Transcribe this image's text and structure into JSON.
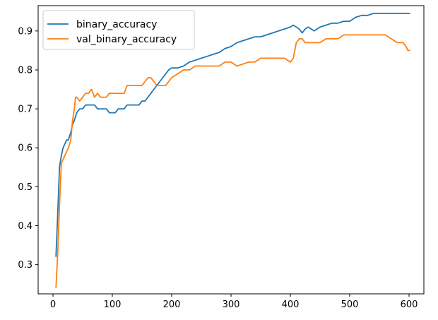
{
  "chart_data": {
    "type": "line",
    "title": "",
    "xlabel": "",
    "ylabel": "",
    "xlim": [
      -25,
      625
    ],
    "ylim": [
      0.225,
      0.965
    ],
    "xticks": [
      0,
      100,
      200,
      300,
      400,
      500,
      600
    ],
    "yticks": [
      0.3,
      0.4,
      0.5,
      0.6,
      0.7,
      0.8,
      0.9
    ],
    "xtick_labels": [
      "0",
      "100",
      "200",
      "300",
      "400",
      "500",
      "600"
    ],
    "ytick_labels": [
      "0.3",
      "0.4",
      "0.5",
      "0.6",
      "0.7",
      "0.8",
      "0.9"
    ],
    "grid": false,
    "legend_position": "top-left",
    "series": [
      {
        "name": "binary_accuracy",
        "color": "#1f77b4",
        "x": [
          5,
          8,
          11,
          14,
          17,
          20,
          23,
          26,
          30,
          33,
          36,
          40,
          45,
          50,
          55,
          60,
          65,
          70,
          75,
          80,
          85,
          90,
          95,
          100,
          105,
          110,
          115,
          120,
          125,
          130,
          135,
          140,
          145,
          150,
          155,
          160,
          165,
          170,
          175,
          180,
          185,
          190,
          195,
          200,
          210,
          220,
          230,
          240,
          250,
          260,
          270,
          280,
          290,
          300,
          310,
          320,
          330,
          340,
          350,
          360,
          370,
          380,
          390,
          400,
          405,
          410,
          415,
          420,
          425,
          430,
          440,
          450,
          460,
          470,
          480,
          490,
          500,
          510,
          520,
          530,
          540,
          550,
          560,
          570,
          580,
          590,
          602
        ],
        "y": [
          0.32,
          0.43,
          0.55,
          0.58,
          0.6,
          0.61,
          0.62,
          0.62,
          0.64,
          0.66,
          0.67,
          0.69,
          0.7,
          0.7,
          0.71,
          0.71,
          0.71,
          0.71,
          0.7,
          0.7,
          0.7,
          0.7,
          0.69,
          0.69,
          0.69,
          0.7,
          0.7,
          0.7,
          0.71,
          0.71,
          0.71,
          0.71,
          0.71,
          0.72,
          0.72,
          0.73,
          0.74,
          0.75,
          0.76,
          0.77,
          0.78,
          0.79,
          0.8,
          0.805,
          0.805,
          0.81,
          0.82,
          0.825,
          0.83,
          0.835,
          0.84,
          0.845,
          0.855,
          0.86,
          0.87,
          0.875,
          0.88,
          0.885,
          0.885,
          0.89,
          0.895,
          0.9,
          0.905,
          0.91,
          0.915,
          0.91,
          0.905,
          0.895,
          0.905,
          0.91,
          0.9,
          0.91,
          0.915,
          0.92,
          0.92,
          0.925,
          0.925,
          0.935,
          0.94,
          0.94,
          0.945,
          0.945,
          0.945,
          0.945,
          0.945,
          0.945,
          0.945
        ]
      },
      {
        "name": "val_binary_accuracy",
        "color": "#ff7f0e",
        "x": [
          5,
          8,
          11,
          14,
          17,
          20,
          23,
          26,
          30,
          33,
          36,
          38,
          40,
          45,
          50,
          55,
          60,
          65,
          70,
          75,
          80,
          90,
          95,
          100,
          110,
          120,
          125,
          130,
          140,
          150,
          155,
          160,
          165,
          170,
          175,
          180,
          190,
          195,
          200,
          210,
          220,
          230,
          240,
          250,
          260,
          270,
          280,
          290,
          300,
          310,
          320,
          330,
          340,
          350,
          360,
          370,
          380,
          390,
          400,
          405,
          410,
          415,
          420,
          425,
          430,
          440,
          450,
          460,
          470,
          480,
          490,
          500,
          510,
          520,
          530,
          540,
          550,
          560,
          570,
          580,
          590,
          595,
          598,
          602
        ],
        "y": [
          0.24,
          0.33,
          0.45,
          0.56,
          0.57,
          0.58,
          0.59,
          0.6,
          0.62,
          0.67,
          0.7,
          0.73,
          0.73,
          0.72,
          0.73,
          0.74,
          0.74,
          0.75,
          0.73,
          0.74,
          0.73,
          0.73,
          0.74,
          0.74,
          0.74,
          0.74,
          0.76,
          0.76,
          0.76,
          0.76,
          0.77,
          0.78,
          0.78,
          0.77,
          0.76,
          0.76,
          0.76,
          0.77,
          0.78,
          0.79,
          0.8,
          0.8,
          0.81,
          0.81,
          0.81,
          0.81,
          0.81,
          0.82,
          0.82,
          0.81,
          0.815,
          0.82,
          0.82,
          0.83,
          0.83,
          0.83,
          0.83,
          0.83,
          0.82,
          0.83,
          0.87,
          0.88,
          0.88,
          0.87,
          0.87,
          0.87,
          0.87,
          0.88,
          0.88,
          0.88,
          0.89,
          0.89,
          0.89,
          0.89,
          0.89,
          0.89,
          0.89,
          0.89,
          0.88,
          0.87,
          0.87,
          0.86,
          0.85,
          0.85
        ]
      }
    ]
  }
}
